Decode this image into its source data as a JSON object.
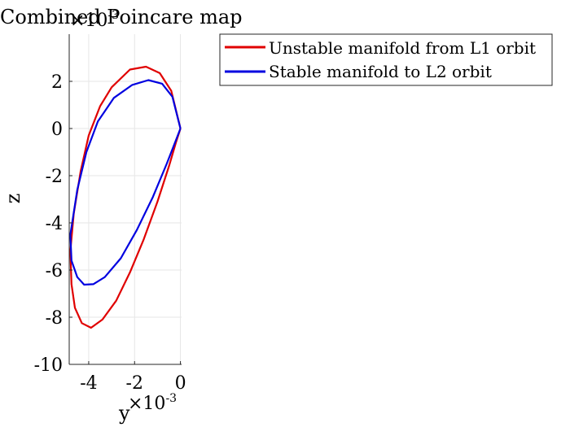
{
  "chart_data": {
    "type": "line",
    "title": "Combined Poincare map",
    "xlabel": "y",
    "ylabel": "z",
    "x_exponent_label": "×10",
    "x_exponent_power": "-3",
    "y_exponent_label": "×10",
    "y_exponent_power": "-3",
    "xlim": [
      -4.85,
      0.05
    ],
    "ylim": [
      -10,
      4
    ],
    "x_ticks": [
      -4,
      -2,
      0
    ],
    "x_tick_labels": [
      "-4",
      "-2",
      "0"
    ],
    "y_ticks": [
      -10,
      -8,
      -6,
      -4,
      -2,
      0,
      2
    ],
    "y_tick_labels": [
      "-10",
      "-8",
      "-6",
      "-4",
      "-2",
      "0",
      "2"
    ],
    "grid": true,
    "legend_position": "outside-right-top",
    "series": [
      {
        "name": "Unstable manifold from L1 orbit",
        "color": "#e00000",
        "x": [
          0,
          -0.4,
          -0.9,
          -1.5,
          -2.2,
          -3.0,
          -3.5,
          -4.0,
          -4.35,
          -4.65,
          -4.8,
          -4.75,
          -4.6,
          -4.3,
          -3.9,
          -3.4,
          -2.8,
          -2.2,
          -1.6,
          -1.0,
          -0.5,
          -0.2,
          0
        ],
        "y": [
          0,
          1.6,
          2.35,
          2.62,
          2.5,
          1.75,
          0.95,
          -0.3,
          -1.8,
          -3.6,
          -5.2,
          -6.6,
          -7.6,
          -8.25,
          -8.45,
          -8.1,
          -7.3,
          -6.1,
          -4.7,
          -3.1,
          -1.6,
          -0.6,
          0
        ]
      },
      {
        "name": "Stable manifold to L2 orbit",
        "color": "#0000e0",
        "x": [
          0,
          -0.35,
          -0.8,
          -1.4,
          -2.1,
          -2.9,
          -3.6,
          -4.1,
          -4.5,
          -4.8,
          -4.75,
          -4.5,
          -4.2,
          -3.8,
          -3.3,
          -2.6,
          -1.9,
          -1.2,
          -0.6,
          -0.2,
          0
        ],
        "y": [
          0,
          1.35,
          1.9,
          2.05,
          1.85,
          1.3,
          0.3,
          -1.0,
          -2.6,
          -4.5,
          -5.6,
          -6.3,
          -6.62,
          -6.6,
          -6.3,
          -5.5,
          -4.3,
          -2.9,
          -1.5,
          -0.5,
          0
        ]
      }
    ]
  },
  "colors": {
    "axis": "#262626",
    "grid": "#e6e6e6",
    "background": "#ffffff"
  }
}
